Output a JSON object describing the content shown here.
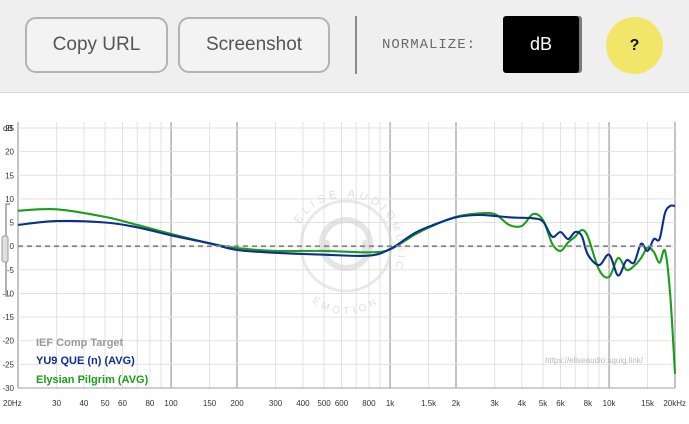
{
  "toolbar": {
    "copy_url": "Copy URL",
    "screenshot": "Screenshot",
    "normalize_label": "NORMALIZE:",
    "normalize_value": "dB",
    "help": "?"
  },
  "watermark": {
    "arc_top": "ELISE AUDIO",
    "arc_right": "MUSIC",
    "arc_bottom": "EMOTION"
  },
  "source_url": "https://eliseaudio.squig.link/",
  "colors": {
    "target": "#9a9a9a",
    "yu9": "#0b2f8f",
    "pilgrim": "#1a9e1a"
  },
  "chart_data": {
    "type": "line",
    "xscale": "log",
    "xlim": [
      20,
      20000
    ],
    "ylim": [
      -30,
      25
    ],
    "ylabel": "dB",
    "x_ticks": [
      {
        "v": 20,
        "label": "20Hz"
      },
      {
        "v": 30,
        "label": "30"
      },
      {
        "v": 40,
        "label": "40"
      },
      {
        "v": 50,
        "label": "50"
      },
      {
        "v": 60,
        "label": "60"
      },
      {
        "v": 80,
        "label": "80"
      },
      {
        "v": 100,
        "label": "100"
      },
      {
        "v": 150,
        "label": "150"
      },
      {
        "v": 200,
        "label": "200"
      },
      {
        "v": 300,
        "label": "300"
      },
      {
        "v": 400,
        "label": "400"
      },
      {
        "v": 500,
        "label": "500"
      },
      {
        "v": 600,
        "label": "600"
      },
      {
        "v": 800,
        "label": "800"
      },
      {
        "v": 1000,
        "label": "1k"
      },
      {
        "v": 1500,
        "label": "1.5k"
      },
      {
        "v": 2000,
        "label": "2k"
      },
      {
        "v": 3000,
        "label": "3k"
      },
      {
        "v": 4000,
        "label": "4k"
      },
      {
        "v": 5000,
        "label": "5k"
      },
      {
        "v": 6000,
        "label": "6k"
      },
      {
        "v": 8000,
        "label": "8k"
      },
      {
        "v": 10000,
        "label": "10k"
      },
      {
        "v": 15000,
        "label": "15k"
      },
      {
        "v": 20000,
        "label": "20kHz"
      }
    ],
    "y_ticks": [
      25,
      20,
      15,
      10,
      5,
      0,
      -5,
      -10,
      -15,
      -20,
      -25,
      -30
    ],
    "grid": true,
    "legend": [
      "IEF Comp Target",
      "YU9 QUE (n) (AVG)",
      "Elysian Pilgrim (AVG)"
    ],
    "legend_position": "bottom-left",
    "series": [
      {
        "name": "IEF Comp Target",
        "style": "dashed",
        "x": [
          20,
          20000
        ],
        "y": [
          0,
          0
        ]
      },
      {
        "name": "YU9 QUE (n) (AVG)",
        "x": [
          20,
          30,
          50,
          70,
          100,
          150,
          200,
          300,
          500,
          800,
          1000,
          1300,
          1600,
          2000,
          2500,
          3000,
          3500,
          4000,
          4500,
          5000,
          5500,
          6000,
          6500,
          7000,
          7500,
          8000,
          9000,
          10000,
          11000,
          12000,
          13000,
          14000,
          15000,
          16000,
          17000,
          18000,
          19000,
          20000
        ],
        "y": [
          4.5,
          5.3,
          5.0,
          4.0,
          2.3,
          0.6,
          -0.8,
          -1.4,
          -1.8,
          -2.0,
          -0.6,
          2.8,
          4.6,
          6.1,
          6.6,
          6.4,
          6.1,
          6.0,
          5.9,
          5.2,
          2.0,
          3.0,
          1.5,
          3.0,
          2.2,
          -1.8,
          -4.0,
          -1.8,
          -6.2,
          -3.0,
          -3.5,
          0.5,
          -1.0,
          1.5,
          1.5,
          7.0,
          8.5,
          8.5
        ]
      },
      {
        "name": "Elysian Pilgrim (AVG)",
        "x": [
          20,
          30,
          50,
          70,
          100,
          150,
          200,
          300,
          500,
          800,
          1000,
          1300,
          1600,
          2000,
          2500,
          3000,
          3500,
          4000,
          4500,
          5000,
          5500,
          6000,
          6500,
          7000,
          7500,
          8000,
          9000,
          10000,
          11000,
          12000,
          13000,
          14000,
          15000,
          16000,
          17000,
          18000,
          19000,
          20000
        ],
        "y": [
          7.5,
          7.8,
          6.2,
          4.5,
          2.6,
          0.6,
          -0.4,
          -1.0,
          -1.0,
          -1.3,
          -0.7,
          2.5,
          4.5,
          6.2,
          6.9,
          6.8,
          4.5,
          4.3,
          6.8,
          5.5,
          0.5,
          -1.0,
          0.8,
          2.0,
          3.4,
          2.0,
          -5.0,
          -6.5,
          -2.5,
          -5.0,
          -4.2,
          -2.5,
          -0.3,
          -1.2,
          -3.5,
          -1.0,
          -10.0,
          -27.0
        ]
      }
    ]
  }
}
